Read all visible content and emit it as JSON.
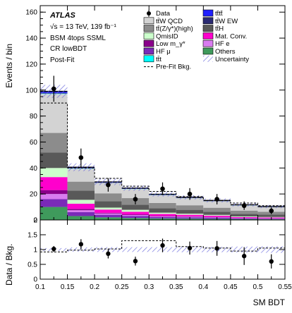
{
  "chart_data": {
    "type": "bar",
    "experiment": "ATLAS",
    "energy_lumi": "√s = 13 TeV, 139 fb⁻¹",
    "analysis": "BSM 4tops SSML",
    "region": "CR lowBDT",
    "stage": "Post-Fit",
    "xlabel": "SM BDT",
    "ylabel_top": "Events / bin",
    "ylabel_bottom": "Data / Bkg.",
    "x_edges": [
      0.1,
      0.15,
      0.2,
      0.25,
      0.3,
      0.35,
      0.4,
      0.45,
      0.5,
      0.55
    ],
    "xlim": [
      0.1,
      0.55
    ],
    "ylim_top": [
      0,
      165
    ],
    "ylim_bottom": [
      0,
      2
    ],
    "x_ticks": [
      "0.1",
      "0.15",
      "0.2",
      "0.25",
      "0.3",
      "0.35",
      "0.4",
      "0.45",
      "0.5",
      "0.55"
    ],
    "y_ticks_top": [
      "0",
      "20",
      "40",
      "60",
      "80",
      "100",
      "120",
      "140",
      "160"
    ],
    "y_ticks_bottom": [
      "0",
      "0.5",
      "1",
      "1.5",
      "2"
    ],
    "legend": [
      {
        "label": "Data",
        "marker": "point",
        "color": "#000000"
      },
      {
        "label": "tt̄tt̄",
        "marker": "box",
        "color": "#1f1fff"
      },
      {
        "label": "tt̄W QCD",
        "marker": "box",
        "color": "#d3d3d3"
      },
      {
        "label": "tt̄W EW",
        "marker": "box",
        "color": "#2a2a72"
      },
      {
        "label": "tt̄(Z/γ*)(high)",
        "marker": "box",
        "color": "#8c8c8c"
      },
      {
        "label": "tt̄H",
        "marker": "box",
        "color": "#595959"
      },
      {
        "label": "QmisID",
        "marker": "box",
        "color": "#ccffcc"
      },
      {
        "label": "Mat. Conv.",
        "marker": "box",
        "color": "#ff00cc"
      },
      {
        "label": "Low m_γ*",
        "marker": "box",
        "color": "#8b008b"
      },
      {
        "label": "HF e",
        "marker": "box",
        "color": "#d97cf0"
      },
      {
        "label": "HF μ",
        "marker": "box",
        "color": "#7a2ab8"
      },
      {
        "label": "Others",
        "marker": "box",
        "color": "#3f9a5c"
      },
      {
        "label": "tt̄t",
        "marker": "box",
        "color": "#00ffff"
      },
      {
        "label": "Uncertainty",
        "marker": "hatch",
        "color": "#6b6bdc"
      },
      {
        "label": "Pre-Fit Bkg.",
        "marker": "dashed",
        "color": "#000000"
      }
    ],
    "series": [
      {
        "name": "Others",
        "color": "#3f9a5c",
        "values": [
          10,
          3,
          2,
          1.5,
          1.2,
          1,
          0.8,
          0.6,
          0.5
        ]
      },
      {
        "name": "HF μ",
        "color": "#7a2ab8",
        "values": [
          6,
          3,
          2,
          1.5,
          1,
          1,
          0.8,
          0.5,
          0.4
        ]
      },
      {
        "name": "HF e",
        "color": "#d97cf0",
        "values": [
          4,
          1.5,
          1,
          0.8,
          0.5,
          0.5,
          0.4,
          0.3,
          0.3
        ]
      },
      {
        "name": "Low m_γ*",
        "color": "#8b008b",
        "values": [
          3,
          1,
          0.5,
          0.5,
          0.4,
          0.3,
          0.3,
          0.2,
          0.2
        ]
      },
      {
        "name": "Mat. Conv.",
        "color": "#ff00cc",
        "values": [
          10,
          4,
          2.5,
          2,
          1.5,
          1.2,
          1,
          0.6,
          0.5
        ]
      },
      {
        "name": "QmisID",
        "color": "#ccffcc",
        "values": [
          7,
          3,
          1.5,
          1.5,
          1,
          0.8,
          0.6,
          0.5,
          0.4
        ]
      },
      {
        "name": "tt̄H",
        "color": "#595959",
        "values": [
          12,
          7,
          5,
          4,
          3.5,
          3,
          2.5,
          2,
          1.8
        ]
      },
      {
        "name": "tt̄(Z/γ*)(high)",
        "color": "#8c8c8c",
        "values": [
          15,
          7,
          6,
          5,
          4,
          3.5,
          3,
          2.5,
          2.2
        ]
      },
      {
        "name": "tt̄W QCD",
        "color": "#d3d3d3",
        "values": [
          30,
          10,
          8,
          7,
          6,
          5.5,
          5,
          4,
          3.5
        ]
      },
      {
        "name": "tt̄t",
        "color": "#00ffff",
        "values": [
          0.3,
          0.2,
          0.1,
          0.1,
          0.1,
          0.1,
          0.1,
          0.1,
          0.1
        ]
      },
      {
        "name": "tt̄W EW",
        "color": "#2a2a72",
        "values": [
          0.5,
          0.3,
          0.2,
          0.2,
          0.2,
          0.2,
          0.2,
          0.1,
          0.1
        ]
      },
      {
        "name": "tt̄tt̄",
        "color": "#1f1fff",
        "values": [
          1.2,
          0.6,
          0.5,
          0.4,
          0.4,
          0.3,
          0.3,
          0.3,
          0.3
        ]
      }
    ],
    "data": {
      "values": [
        101,
        48,
        27,
        16,
        24,
        20,
        16,
        11,
        7
      ],
      "errors": [
        10,
        7,
        5.2,
        4,
        4.9,
        4.5,
        4,
        3.3,
        2.6
      ]
    },
    "prefit": [
      90,
      40,
      32,
      26,
      22,
      18,
      15,
      13,
      11
    ],
    "uncertainty": [
      5,
      3,
      2.5,
      2,
      1.8,
      1.6,
      1.5,
      1.3,
      1.2
    ],
    "ratio": {
      "values": [
        1.02,
        1.18,
        0.86,
        0.61,
        1.14,
        1.05,
        1.04,
        0.78,
        0.6
      ],
      "errors": [
        0.1,
        0.17,
        0.16,
        0.15,
        0.23,
        0.22,
        0.25,
        0.3,
        0.24
      ]
    },
    "prefit_ratio": [
      0.92,
      0.98,
      1.02,
      1.3,
      1.3,
      1.1,
      1.05,
      0.95,
      1.05
    ],
    "ratio_uncertainty": [
      0.05,
      0.07,
      0.08,
      0.08,
      0.08,
      0.09,
      0.09,
      0.1,
      0.11
    ]
  }
}
